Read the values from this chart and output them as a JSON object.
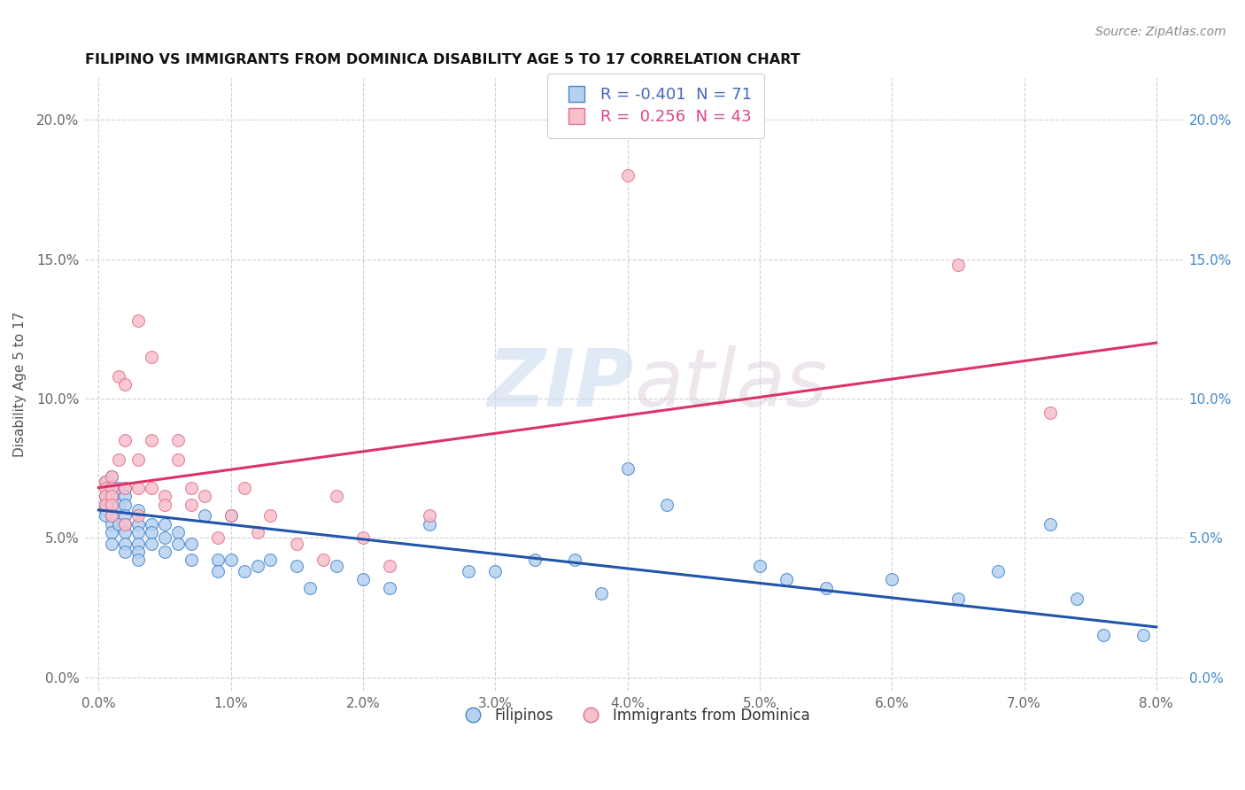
{
  "title": "FILIPINO VS IMMIGRANTS FROM DOMINICA DISABILITY AGE 5 TO 17 CORRELATION CHART",
  "source": "Source: ZipAtlas.com",
  "ylabel": "Disability Age 5 to 17",
  "xlim": [
    -0.001,
    0.082
  ],
  "ylim": [
    -0.005,
    0.215
  ],
  "xticks": [
    0.0,
    0.01,
    0.02,
    0.03,
    0.04,
    0.05,
    0.06,
    0.07,
    0.08
  ],
  "yticks": [
    0.0,
    0.05,
    0.1,
    0.15,
    0.2
  ],
  "blue_R": -0.401,
  "blue_N": 71,
  "pink_R": 0.256,
  "pink_N": 43,
  "blue_fill": "#b8d0f0",
  "pink_fill": "#f8c0cc",
  "blue_edge": "#4488cc",
  "pink_edge": "#e07090",
  "blue_line": "#2255aa",
  "pink_line": "#dd3366",
  "right_tick_color": "#4488cc",
  "left_tick_color": "#666666",
  "legend_label_blue": "Filipinos",
  "legend_label_pink": "Immigrants from Dominica",
  "blue_R_color": "#4466bb",
  "pink_R_color": "#dd4488",
  "blue_x": [
    0.0005,
    0.0005,
    0.0005,
    0.0005,
    0.0005,
    0.001,
    0.001,
    0.001,
    0.001,
    0.001,
    0.001,
    0.001,
    0.001,
    0.0015,
    0.0015,
    0.0015,
    0.002,
    0.002,
    0.002,
    0.002,
    0.002,
    0.002,
    0.002,
    0.002,
    0.003,
    0.003,
    0.003,
    0.003,
    0.003,
    0.003,
    0.004,
    0.004,
    0.004,
    0.005,
    0.005,
    0.005,
    0.006,
    0.006,
    0.007,
    0.007,
    0.008,
    0.009,
    0.009,
    0.01,
    0.01,
    0.011,
    0.012,
    0.013,
    0.015,
    0.016,
    0.018,
    0.02,
    0.022,
    0.025,
    0.028,
    0.03,
    0.033,
    0.036,
    0.038,
    0.04,
    0.043,
    0.05,
    0.052,
    0.055,
    0.06,
    0.065,
    0.068,
    0.072,
    0.074,
    0.076,
    0.079
  ],
  "blue_y": [
    0.07,
    0.065,
    0.062,
    0.06,
    0.058,
    0.072,
    0.068,
    0.065,
    0.062,
    0.058,
    0.055,
    0.052,
    0.048,
    0.068,
    0.062,
    0.055,
    0.068,
    0.065,
    0.062,
    0.058,
    0.055,
    0.052,
    0.048,
    0.045,
    0.06,
    0.055,
    0.052,
    0.048,
    0.045,
    0.042,
    0.055,
    0.052,
    0.048,
    0.055,
    0.05,
    0.045,
    0.052,
    0.048,
    0.048,
    0.042,
    0.058,
    0.042,
    0.038,
    0.058,
    0.042,
    0.038,
    0.04,
    0.042,
    0.04,
    0.032,
    0.04,
    0.035,
    0.032,
    0.055,
    0.038,
    0.038,
    0.042,
    0.042,
    0.03,
    0.075,
    0.062,
    0.04,
    0.035,
    0.032,
    0.035,
    0.028,
    0.038,
    0.055,
    0.028,
    0.015,
    0.015
  ],
  "pink_x": [
    0.0005,
    0.0005,
    0.0005,
    0.0005,
    0.001,
    0.001,
    0.001,
    0.001,
    0.001,
    0.0015,
    0.0015,
    0.002,
    0.002,
    0.002,
    0.002,
    0.003,
    0.003,
    0.003,
    0.003,
    0.004,
    0.004,
    0.004,
    0.005,
    0.005,
    0.006,
    0.006,
    0.007,
    0.007,
    0.008,
    0.009,
    0.01,
    0.011,
    0.012,
    0.013,
    0.015,
    0.017,
    0.018,
    0.02,
    0.022,
    0.025,
    0.04,
    0.065,
    0.072
  ],
  "pink_y": [
    0.07,
    0.068,
    0.065,
    0.062,
    0.072,
    0.068,
    0.065,
    0.062,
    0.058,
    0.108,
    0.078,
    0.105,
    0.085,
    0.068,
    0.055,
    0.078,
    0.068,
    0.128,
    0.058,
    0.115,
    0.085,
    0.068,
    0.065,
    0.062,
    0.085,
    0.078,
    0.068,
    0.062,
    0.065,
    0.05,
    0.058,
    0.068,
    0.052,
    0.058,
    0.048,
    0.042,
    0.065,
    0.05,
    0.04,
    0.058,
    0.18,
    0.148,
    0.095
  ],
  "blue_trend_x": [
    0.0,
    0.08
  ],
  "blue_trend_y": [
    0.06,
    0.018
  ],
  "pink_trend_x": [
    0.0,
    0.08
  ],
  "pink_trend_y": [
    0.068,
    0.12
  ]
}
